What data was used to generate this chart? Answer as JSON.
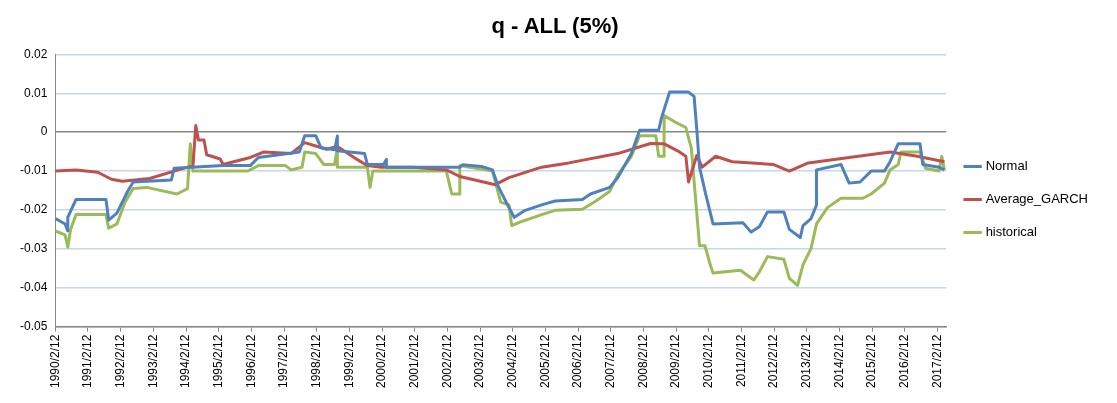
{
  "chart_data": {
    "type": "line",
    "title": "q - ALL (5%)",
    "xlim": [
      "1990-02-12",
      "2017-05-20"
    ],
    "xticks": [
      {
        "value": "1990-02-12",
        "label": "1990/2/12"
      },
      {
        "value": "1991-02-12",
        "label": "1991/2/12"
      },
      {
        "value": "1992-02-12",
        "label": "1992/2/12"
      },
      {
        "value": "1993-02-12",
        "label": "1993/2/12"
      },
      {
        "value": "1994-02-12",
        "label": "1994/2/12"
      },
      {
        "value": "1995-02-12",
        "label": "1995/2/12"
      },
      {
        "value": "1996-02-12",
        "label": "1996/2/12"
      },
      {
        "value": "1997-02-12",
        "label": "1997/2/12"
      },
      {
        "value": "1998-02-12",
        "label": "1998/2/12"
      },
      {
        "value": "1999-02-12",
        "label": "1999/2/12"
      },
      {
        "value": "2000-02-12",
        "label": "2000/2/12"
      },
      {
        "value": "2001-02-12",
        "label": "2001/2/12"
      },
      {
        "value": "2002-02-12",
        "label": "2002/2/12"
      },
      {
        "value": "2003-02-12",
        "label": "2003/2/12"
      },
      {
        "value": "2004-02-12",
        "label": "2004/2/12"
      },
      {
        "value": "2005-02-12",
        "label": "2005/2/12"
      },
      {
        "value": "2006-02-12",
        "label": "2006/2/12"
      },
      {
        "value": "2007-02-12",
        "label": "2007/2/12"
      },
      {
        "value": "2008-02-12",
        "label": "2008/2/12"
      },
      {
        "value": "2009-02-12",
        "label": "2009/2/12"
      },
      {
        "value": "2010-02-12",
        "label": "2010/2/12"
      },
      {
        "value": "2011-02-12",
        "label": "2011/2/12"
      },
      {
        "value": "2012-02-12",
        "label": "2012/2/12"
      },
      {
        "value": "2013-02-12",
        "label": "2013/2/12"
      },
      {
        "value": "2014-02-12",
        "label": "2014/2/12"
      },
      {
        "value": "2015-02-12",
        "label": "2015/2/12"
      },
      {
        "value": "2016-02-12",
        "label": "2016/2/12"
      },
      {
        "value": "2017-02-12",
        "label": "2017/2/12"
      }
    ],
    "ylim": [
      -0.05,
      0.02
    ],
    "yticks": [
      -0.05,
      -0.04,
      -0.03,
      -0.02,
      -0.01,
      0,
      0.01,
      0.02
    ],
    "grid": "y",
    "legend": "right",
    "marker": "none",
    "line_style": "solid",
    "series": [
      {
        "name": "Normal",
        "color": "#4f81bd",
        "x": [
          "1990-02-12",
          "1990-06",
          "1990-07",
          "1990-07",
          "1990-10",
          "1991-09",
          "1991-10",
          "1992-01",
          "1992-05",
          "1992-07",
          "1993-09",
          "1993-10",
          "1995-04",
          "1996-02",
          "1996-05",
          "1997-08",
          "1997-10",
          "1998-02",
          "1998-04",
          "1998-09",
          "1998-10",
          "1998-10",
          "1999-08",
          "1999-09",
          "2000-03",
          "2000-04",
          "2000-04",
          "2002-07",
          "2002-08",
          "2003-03",
          "2003-07",
          "2003-09",
          "2003-12",
          "2004-03",
          "2004-07",
          "2005-01",
          "2005-06",
          "2006-04",
          "2006-07",
          "2007-02",
          "2007-05",
          "2007-10",
          "2008-01",
          "2008-08",
          "2008-09",
          "2008-12",
          "2009-07",
          "2009-09",
          "2009-10",
          "2009-11",
          "2010-01",
          "2010-04",
          "2011-03",
          "2011-06",
          "2011-09",
          "2011-12",
          "2012-06",
          "2012-08",
          "2012-12",
          "2013-01",
          "2013-04",
          "2013-06",
          "2013-06",
          "2014-03",
          "2014-06",
          "2014-10",
          "2015-02",
          "2015-07",
          "2015-09",
          "2015-12",
          "2016-08",
          "2016-09",
          "2017-03",
          "2017-05"
        ],
        "values": [
          -0.0222,
          -0.0236,
          -0.0254,
          -0.0219,
          -0.0173,
          -0.0173,
          -0.0226,
          -0.0208,
          -0.0152,
          -0.0128,
          -0.0123,
          -0.0093,
          -0.0086,
          -0.0086,
          -0.0065,
          -0.0051,
          -0.0009,
          -0.0009,
          -0.004,
          -0.0045,
          -0.001,
          -0.0048,
          -0.0055,
          -0.0083,
          -0.0083,
          -0.007,
          -0.009,
          -0.009,
          -0.0084,
          -0.0088,
          -0.0097,
          -0.0138,
          -0.018,
          -0.0219,
          -0.0201,
          -0.0187,
          -0.0177,
          -0.0173,
          -0.0159,
          -0.0142,
          -0.0117,
          -0.0055,
          0.0005,
          0.0005,
          0.0036,
          0.0103,
          0.0103,
          0.0092,
          0.0008,
          -0.009,
          -0.0152,
          -0.0236,
          -0.0233,
          -0.0257,
          -0.0243,
          -0.0205,
          -0.0205,
          -0.025,
          -0.0271,
          -0.024,
          -0.0222,
          -0.0187,
          -0.0097,
          -0.0083,
          -0.0131,
          -0.0128,
          -0.01,
          -0.01,
          -0.0076,
          -0.003,
          -0.003,
          -0.0083,
          -0.009,
          -0.0097
        ]
      },
      {
        "name": "Average_GARCH",
        "color": "#c0504d",
        "x": [
          "1990-02-12",
          "1990-10",
          "1991-06",
          "1991-11",
          "1992-03",
          "1993-01",
          "1993-10",
          "1994-05",
          "1994-06",
          "1994-07",
          "1994-09",
          "1994-10",
          "1995-03",
          "1995-04",
          "1996-02",
          "1996-07",
          "1997-05",
          "1997-10",
          "1998-06",
          "1998-10",
          "1999-05",
          "1999-09",
          "2000-02",
          "2001-02",
          "2002-02",
          "2002-07",
          "2003-08",
          "2004-01",
          "2005-01",
          "2005-11",
          "2007-05",
          "2008-05",
          "2008-10",
          "2009-03",
          "2009-06",
          "2009-07",
          "2009-10",
          "2009-12",
          "2010-05",
          "2010-11",
          "2012-02",
          "2012-08",
          "2013-03",
          "2014-06",
          "2015-09",
          "2016-07",
          "2017-05"
        ],
        "values": [
          -0.01,
          -0.0097,
          -0.0103,
          -0.0121,
          -0.0126,
          -0.0119,
          -0.01,
          -0.0086,
          0.0017,
          -0.002,
          -0.002,
          -0.0058,
          -0.0069,
          -0.0083,
          -0.0065,
          -0.0051,
          -0.0055,
          -0.0027,
          -0.0044,
          -0.0037,
          -0.0069,
          -0.0086,
          -0.009,
          -0.009,
          -0.0097,
          -0.0114,
          -0.0135,
          -0.0117,
          -0.009,
          -0.0079,
          -0.0055,
          -0.0029,
          -0.003,
          -0.0048,
          -0.0062,
          -0.0128,
          -0.006,
          -0.009,
          -0.0062,
          -0.0076,
          -0.0083,
          -0.01,
          -0.0079,
          -0.0065,
          -0.0051,
          -0.0062,
          -0.0076
        ]
      },
      {
        "name": "historical",
        "color": "#9bbb59",
        "x": [
          "1990-02-12",
          "1990-06",
          "1990-07",
          "1990-08",
          "1990-10",
          "1991-09",
          "1991-10",
          "1992-01",
          "1992-04",
          "1992-07",
          "1992-12",
          "1993-11",
          "1994-03",
          "1994-04",
          "1994-05",
          "1996-01",
          "1996-05",
          "1997-03",
          "1997-05",
          "1997-09",
          "1997-10",
          "1998-02",
          "1998-05",
          "1998-09",
          "1998-10",
          "1998-10",
          "1999-09",
          "1999-10",
          "1999-11",
          "2002-02",
          "2002-04",
          "2002-07",
          "2002-07",
          "2003-07",
          "2003-10",
          "2004-01",
          "2004-02",
          "2004-06",
          "2005-01",
          "2005-06",
          "2006-04",
          "2006-09",
          "2007-02",
          "2007-05",
          "2007-10",
          "2008-01",
          "2008-07",
          "2008-08",
          "2008-10",
          "2008-10",
          "2009-02",
          "2009-06",
          "2009-08",
          "2009-11",
          "2010-01",
          "2010-03",
          "2010-04",
          "2011-02",
          "2011-07",
          "2011-09",
          "2011-12",
          "2012-06",
          "2012-08",
          "2012-11",
          "2013-01",
          "2013-04",
          "2013-06",
          "2013-10",
          "2014-03",
          "2014-11",
          "2015-02",
          "2015-07",
          "2015-09",
          "2015-12",
          "2016-01",
          "2016-08",
          "2016-10",
          "2017-03",
          "2017-04",
          "2017-05"
        ],
        "values": [
          -0.0254,
          -0.0264,
          -0.0296,
          -0.025,
          -0.0212,
          -0.0212,
          -0.0247,
          -0.0236,
          -0.018,
          -0.0145,
          -0.0142,
          -0.0159,
          -0.0145,
          -0.003,
          -0.01,
          -0.01,
          -0.0086,
          -0.0086,
          -0.0097,
          -0.009,
          -0.0051,
          -0.0055,
          -0.0083,
          -0.0083,
          -0.0037,
          -0.009,
          -0.009,
          -0.0142,
          -0.01,
          -0.01,
          -0.0159,
          -0.0159,
          -0.0086,
          -0.01,
          -0.018,
          -0.0187,
          -0.024,
          -0.0229,
          -0.0212,
          -0.0201,
          -0.0198,
          -0.0177,
          -0.0152,
          -0.011,
          -0.0062,
          -0.0009,
          -0.0009,
          -0.0062,
          -0.0062,
          0.0043,
          0.0026,
          0.0012,
          -0.0041,
          -0.0292,
          -0.0292,
          -0.0341,
          -0.0362,
          -0.0355,
          -0.038,
          -0.0359,
          -0.032,
          -0.0327,
          -0.0376,
          -0.0394,
          -0.0341,
          -0.0299,
          -0.0236,
          -0.0194,
          -0.017,
          -0.017,
          -0.0159,
          -0.0131,
          -0.0097,
          -0.0083,
          -0.0051,
          -0.0051,
          -0.0093,
          -0.01,
          -0.0062,
          -0.0097
        ]
      }
    ]
  }
}
